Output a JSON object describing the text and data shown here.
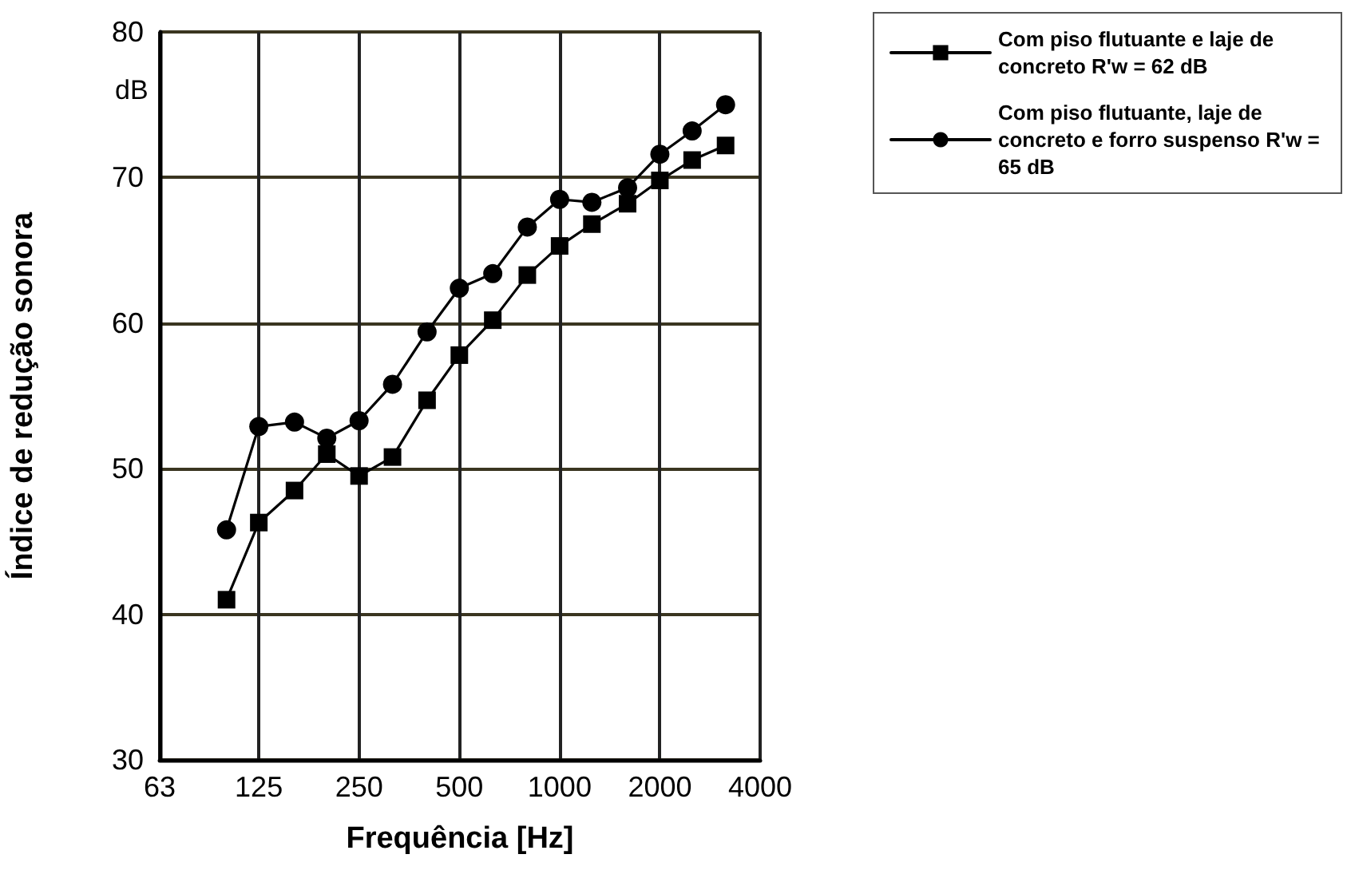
{
  "chart_data": {
    "type": "line",
    "xlabel": "Frequência [Hz]",
    "ylabel": "Índice de redução sonora",
    "annotations": [
      "dB"
    ],
    "x": [
      100,
      125,
      160,
      200,
      250,
      315,
      400,
      500,
      630,
      800,
      1000,
      1250,
      1600,
      2000,
      2500,
      3150
    ],
    "series": [
      {
        "name": "Com piso flutuante e laje de concreto R'w = 62 dB",
        "color": "#000000",
        "marker": "square",
        "values": [
          41,
          46.3,
          48.5,
          51,
          49.5,
          50.8,
          54.7,
          57.8,
          60.2,
          63.3,
          65.3,
          66.8,
          68.2,
          69.8,
          71.2,
          72.2
        ]
      },
      {
        "name": "Com piso flutuante, laje de concreto e forro suspenso R'w = 65 dB",
        "color": "#000000",
        "marker": "circle",
        "values": [
          45.8,
          52.9,
          53.2,
          52.1,
          53.3,
          55.8,
          59.4,
          62.4,
          63.4,
          66.6,
          68.5,
          68.3,
          69.3,
          71.6,
          73.2,
          75
        ]
      }
    ],
    "log": "x",
    "xlim": [
      63,
      4000
    ],
    "xticks": [
      63,
      125,
      250,
      500,
      1000,
      2000,
      4000
    ],
    "ylim": [
      30,
      80
    ],
    "yticks": [
      30,
      40,
      50,
      60,
      70,
      80
    ],
    "grid": true,
    "legend": "top right",
    "line_style": "solid"
  }
}
